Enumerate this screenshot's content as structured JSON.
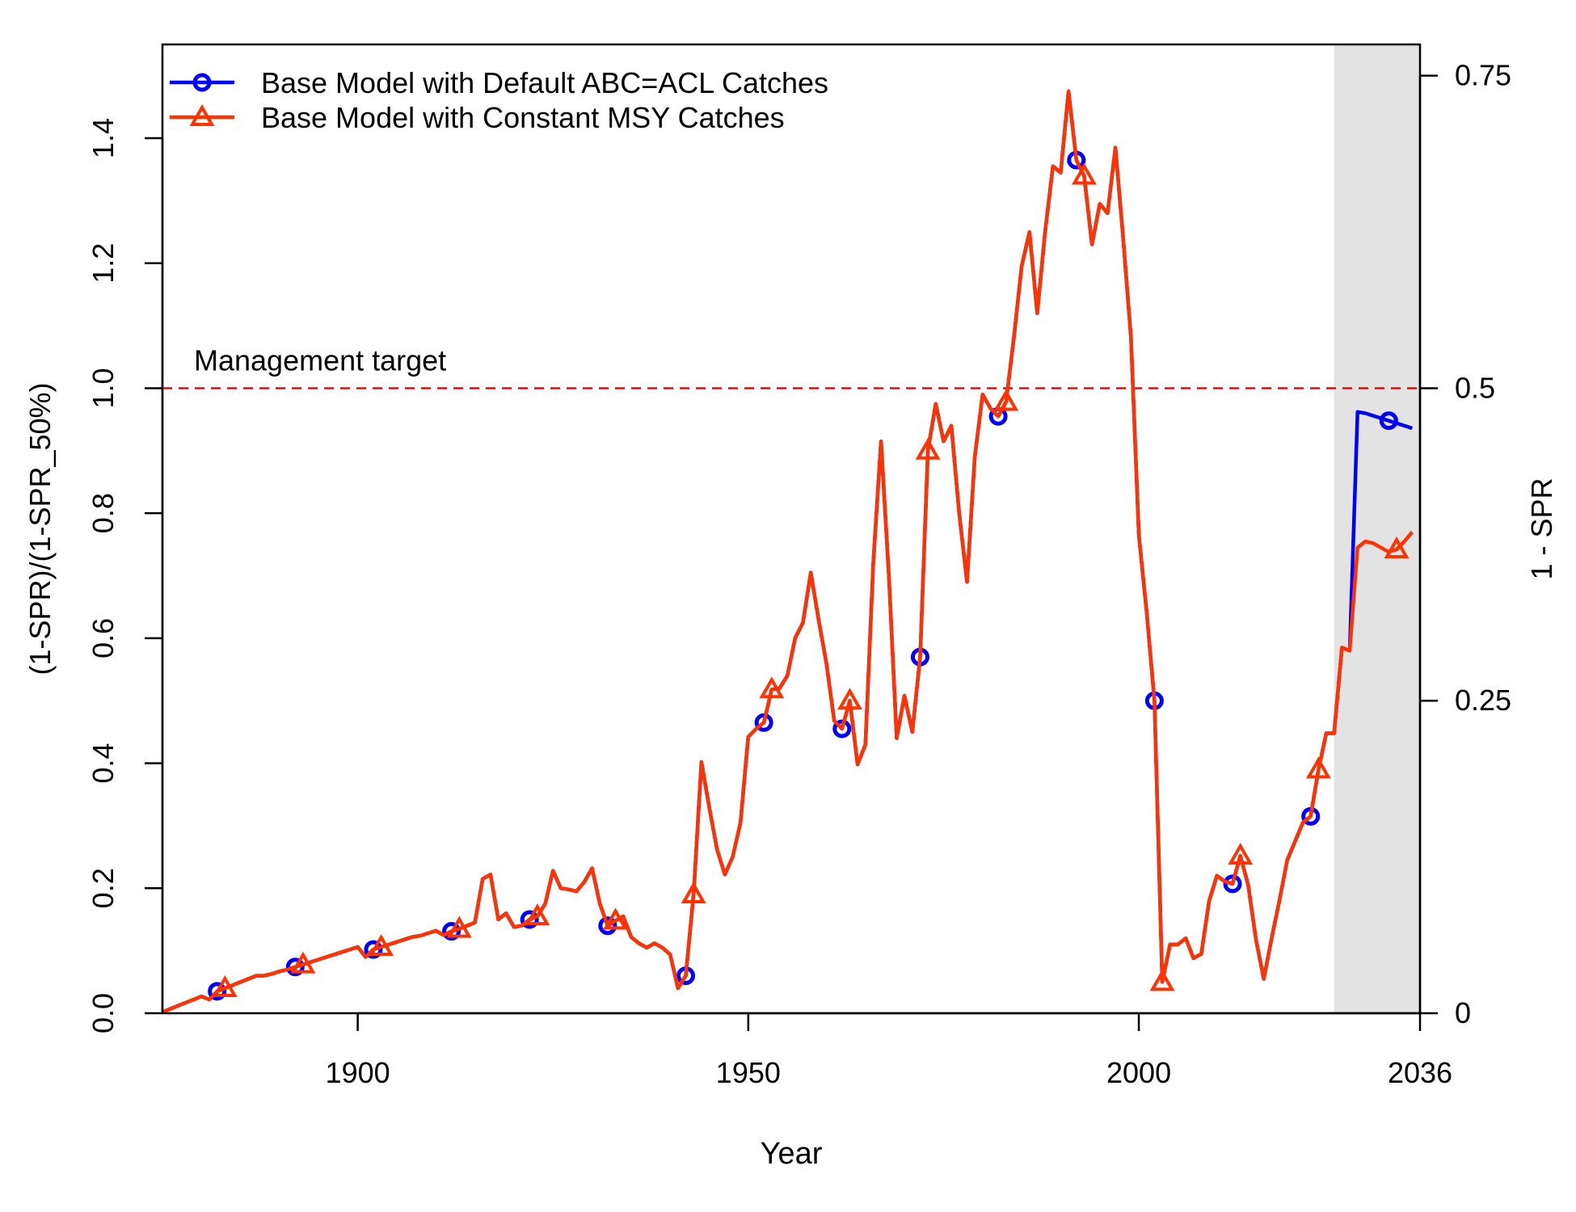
{
  "chart_data": {
    "type": "line",
    "title": "",
    "xlabel": "Year",
    "ylabel": "(1-SPR)/(1-SPR_50%)",
    "ylabel_right": "1 - SPR",
    "xlim": [
      1875,
      2036
    ],
    "ylim": [
      0,
      1.55
    ],
    "x_ticks": [
      1900,
      1950,
      2000,
      2036
    ],
    "x_tick_labels": [
      "1900",
      "1950",
      "2000",
      "2036"
    ],
    "y_ticks": [
      0,
      0.2,
      0.4,
      0.6,
      0.8,
      1.0,
      1.2,
      1.4
    ],
    "y_tick_labels": [
      "0.0",
      "0.2",
      "0.4",
      "0.6",
      "0.8",
      "1.0",
      "1.2",
      "1.4"
    ],
    "y2_ticks": [
      0,
      0.5,
      1.0,
      1.5
    ],
    "y2_tick_labels": [
      "0",
      "0.25",
      "0.5",
      "0.75"
    ],
    "grid": false,
    "legend_position": "top-left",
    "forecast_region": {
      "x_start": 2025,
      "x_end": 2036,
      "color": "#e3e3e3"
    },
    "reference_line": {
      "y": 1.0,
      "label": "Management target",
      "color": "#ff0000",
      "style": "dashed"
    },
    "series": [
      {
        "name": "Base Model with Default ABC=ACL Catches",
        "color": "#0000ff",
        "marker": "circle",
        "x": [
          1875,
          1876,
          1877,
          1878,
          1879,
          1880,
          1881,
          1882,
          1883,
          1884,
          1885,
          1886,
          1887,
          1888,
          1889,
          1890,
          1891,
          1892,
          1893,
          1894,
          1895,
          1896,
          1897,
          1898,
          1899,
          1900,
          1901,
          1902,
          1903,
          1904,
          1905,
          1906,
          1907,
          1908,
          1909,
          1910,
          1911,
          1912,
          1913,
          1914,
          1915,
          1916,
          1917,
          1918,
          1919,
          1920,
          1921,
          1922,
          1923,
          1924,
          1925,
          1926,
          1927,
          1928,
          1929,
          1930,
          1931,
          1932,
          1933,
          1934,
          1935,
          1936,
          1937,
          1938,
          1939,
          1940,
          1941,
          1942,
          1943,
          1944,
          1945,
          1946,
          1947,
          1948,
          1949,
          1950,
          1951,
          1952,
          1953,
          1954,
          1955,
          1956,
          1957,
          1958,
          1959,
          1960,
          1961,
          1962,
          1963,
          1964,
          1965,
          1966,
          1967,
          1968,
          1969,
          1970,
          1971,
          1972,
          1973,
          1974,
          1975,
          1976,
          1977,
          1978,
          1979,
          1980,
          1981,
          1982,
          1983,
          1984,
          1985,
          1986,
          1987,
          1988,
          1989,
          1990,
          1991,
          1992,
          1993,
          1994,
          1995,
          1996,
          1997,
          1998,
          1999,
          2000,
          2001,
          2002,
          2003,
          2004,
          2005,
          2006,
          2007,
          2008,
          2009,
          2010,
          2011,
          2012,
          2013,
          2014,
          2015,
          2016,
          2017,
          2018,
          2019,
          2020,
          2021,
          2022,
          2023,
          2024,
          2025,
          2026,
          2027,
          2028,
          2029,
          2030,
          2031,
          2032,
          2033,
          2034,
          2035
        ],
        "y": [
          0.002,
          0.007,
          0.012,
          0.017,
          0.022,
          0.027,
          0.022,
          0.035,
          0.04,
          0.045,
          0.05,
          0.055,
          0.06,
          0.06,
          0.063,
          0.067,
          0.07,
          0.074,
          0.078,
          0.082,
          0.086,
          0.09,
          0.094,
          0.098,
          0.102,
          0.106,
          0.09,
          0.102,
          0.106,
          0.11,
          0.114,
          0.118,
          0.122,
          0.124,
          0.128,
          0.132,
          0.125,
          0.131,
          0.135,
          0.14,
          0.145,
          0.215,
          0.222,
          0.15,
          0.16,
          0.138,
          0.14,
          0.15,
          0.155,
          0.175,
          0.228,
          0.2,
          0.198,
          0.195,
          0.21,
          0.232,
          0.175,
          0.14,
          0.148,
          0.155,
          0.122,
          0.112,
          0.105,
          0.112,
          0.105,
          0.094,
          0.04,
          0.06,
          0.19,
          0.402,
          0.33,
          0.262,
          0.222,
          0.25,
          0.305,
          0.442,
          0.455,
          0.465,
          0.518,
          0.52,
          0.54,
          0.6,
          0.625,
          0.705,
          0.63,
          0.56,
          0.468,
          0.455,
          0.5,
          0.398,
          0.43,
          0.72,
          0.915,
          0.7,
          0.44,
          0.508,
          0.45,
          0.57,
          0.9,
          0.975,
          0.915,
          0.94,
          0.8,
          0.69,
          0.89,
          0.99,
          0.968,
          0.955,
          0.978,
          1.08,
          1.195,
          1.25,
          1.12,
          1.25,
          1.355,
          1.345,
          1.475,
          1.365,
          1.34,
          1.23,
          1.295,
          1.28,
          1.385,
          1.24,
          1.08,
          0.765,
          0.643,
          0.5,
          0.05,
          0.11,
          0.11,
          0.12,
          0.088,
          0.095,
          0.18,
          0.22,
          0.211,
          0.207,
          0.252,
          0.205,
          0.118,
          0.055,
          0.12,
          0.18,
          0.245,
          0.275,
          0.305,
          0.315,
          0.39,
          0.448,
          0.448,
          0.585,
          0.58,
          0.962,
          0.96,
          0.956,
          0.952,
          0.948,
          0.944,
          0.94,
          0.936
        ],
        "y2": [
          0.001,
          0.0035,
          0.006,
          0.0085,
          0.011,
          0.0135,
          0.011,
          0.0175,
          0.02,
          0.0225,
          0.025,
          0.0275,
          0.03,
          0.03,
          0.0315,
          0.0335,
          0.035,
          0.037,
          0.039,
          0.041,
          0.043,
          0.045,
          0.047,
          0.049,
          0.051,
          0.053,
          0.045,
          0.051,
          0.053,
          0.055,
          0.057,
          0.059,
          0.061,
          0.062,
          0.064,
          0.066,
          0.0625,
          0.0655,
          0.0675,
          0.07,
          0.0725,
          0.1075,
          0.111,
          0.075,
          0.08,
          0.069,
          0.07,
          0.075,
          0.0775,
          0.0875,
          0.114,
          0.1,
          0.099,
          0.0975,
          0.105,
          0.116,
          0.0875,
          0.07,
          0.074,
          0.0775,
          0.061,
          0.056,
          0.0525,
          0.056,
          0.0525,
          0.047,
          0.02,
          0.03,
          0.095,
          0.201,
          0.165,
          0.131,
          0.111,
          0.125,
          0.1525,
          0.221,
          0.2275,
          0.2325,
          0.259,
          0.26,
          0.27,
          0.3,
          0.3125,
          0.3525,
          0.315,
          0.28,
          0.234,
          0.2275,
          0.25,
          0.199,
          0.215,
          0.36,
          0.4575,
          0.35,
          0.22,
          0.254,
          0.225,
          0.285,
          0.45,
          0.4875,
          0.4575,
          0.47,
          0.4,
          0.345,
          0.445,
          0.495,
          0.484,
          0.4775,
          0.489,
          0.54,
          0.5975,
          0.625,
          0.56,
          0.625,
          0.6775,
          0.6725,
          0.7375,
          0.6825,
          0.67,
          0.615,
          0.6475,
          0.64,
          0.6925,
          0.62,
          0.54,
          0.3825,
          0.3215,
          0.25,
          0.025,
          0.055,
          0.055,
          0.06,
          0.044,
          0.0475,
          0.09,
          0.11,
          0.1055,
          0.1035,
          0.126,
          0.1025,
          0.059,
          0.0275,
          0.06,
          0.09,
          0.1225,
          0.1375,
          0.1525,
          0.1575,
          0.195,
          0.224,
          0.224,
          0.2925,
          0.29,
          0.481,
          0.48,
          0.478,
          0.476,
          0.474,
          0.472,
          0.47,
          0.468
        ],
        "marker_x": [
          1882,
          1892,
          1902,
          1912,
          1922,
          1932,
          1942,
          1952,
          1962,
          1972,
          1982,
          1992,
          2002,
          2012,
          2022,
          2032
        ]
      },
      {
        "name": "Base Model with Constant MSY Catches",
        "color": "#ff3300",
        "marker": "triangle",
        "x": [
          1875,
          1876,
          1877,
          1878,
          1879,
          1880,
          1881,
          1882,
          1883,
          1884,
          1885,
          1886,
          1887,
          1888,
          1889,
          1890,
          1891,
          1892,
          1893,
          1894,
          1895,
          1896,
          1897,
          1898,
          1899,
          1900,
          1901,
          1902,
          1903,
          1904,
          1905,
          1906,
          1907,
          1908,
          1909,
          1910,
          1911,
          1912,
          1913,
          1914,
          1915,
          1916,
          1917,
          1918,
          1919,
          1920,
          1921,
          1922,
          1923,
          1924,
          1925,
          1926,
          1927,
          1928,
          1929,
          1930,
          1931,
          1932,
          1933,
          1934,
          1935,
          1936,
          1937,
          1938,
          1939,
          1940,
          1941,
          1942,
          1943,
          1944,
          1945,
          1946,
          1947,
          1948,
          1949,
          1950,
          1951,
          1952,
          1953,
          1954,
          1955,
          1956,
          1957,
          1958,
          1959,
          1960,
          1961,
          1962,
          1963,
          1964,
          1965,
          1966,
          1967,
          1968,
          1969,
          1970,
          1971,
          1972,
          1973,
          1974,
          1975,
          1976,
          1977,
          1978,
          1979,
          1980,
          1981,
          1982,
          1983,
          1984,
          1985,
          1986,
          1987,
          1988,
          1989,
          1990,
          1991,
          1992,
          1993,
          1994,
          1995,
          1996,
          1997,
          1998,
          1999,
          2000,
          2001,
          2002,
          2003,
          2004,
          2005,
          2006,
          2007,
          2008,
          2009,
          2010,
          2011,
          2012,
          2013,
          2014,
          2015,
          2016,
          2017,
          2018,
          2019,
          2020,
          2021,
          2022,
          2023,
          2024,
          2025,
          2026,
          2027,
          2028,
          2029,
          2030,
          2031,
          2032,
          2033,
          2034,
          2035
        ],
        "y": [
          0.002,
          0.007,
          0.012,
          0.017,
          0.022,
          0.027,
          0.022,
          0.035,
          0.04,
          0.045,
          0.05,
          0.055,
          0.06,
          0.06,
          0.063,
          0.067,
          0.07,
          0.074,
          0.078,
          0.082,
          0.086,
          0.09,
          0.094,
          0.098,
          0.102,
          0.106,
          0.09,
          0.102,
          0.106,
          0.11,
          0.114,
          0.118,
          0.122,
          0.124,
          0.128,
          0.132,
          0.125,
          0.131,
          0.135,
          0.14,
          0.145,
          0.215,
          0.222,
          0.15,
          0.16,
          0.138,
          0.14,
          0.15,
          0.155,
          0.175,
          0.228,
          0.2,
          0.198,
          0.195,
          0.21,
          0.232,
          0.175,
          0.14,
          0.148,
          0.155,
          0.122,
          0.112,
          0.105,
          0.112,
          0.105,
          0.094,
          0.04,
          0.06,
          0.19,
          0.402,
          0.33,
          0.262,
          0.222,
          0.25,
          0.305,
          0.442,
          0.455,
          0.465,
          0.518,
          0.52,
          0.54,
          0.6,
          0.625,
          0.705,
          0.63,
          0.56,
          0.468,
          0.455,
          0.5,
          0.398,
          0.43,
          0.72,
          0.915,
          0.7,
          0.44,
          0.508,
          0.45,
          0.57,
          0.9,
          0.975,
          0.915,
          0.94,
          0.8,
          0.69,
          0.89,
          0.99,
          0.968,
          0.955,
          0.978,
          1.08,
          1.195,
          1.25,
          1.12,
          1.25,
          1.355,
          1.345,
          1.475,
          1.365,
          1.34,
          1.23,
          1.295,
          1.28,
          1.385,
          1.24,
          1.08,
          0.765,
          0.643,
          0.5,
          0.05,
          0.11,
          0.11,
          0.12,
          0.088,
          0.095,
          0.18,
          0.22,
          0.211,
          0.207,
          0.252,
          0.205,
          0.118,
          0.055,
          0.12,
          0.18,
          0.245,
          0.275,
          0.305,
          0.315,
          0.39,
          0.448,
          0.448,
          0.585,
          0.58,
          0.745,
          0.755,
          0.752,
          0.745,
          0.738,
          0.742,
          0.755,
          0.77
        ],
        "y2": [
          0.001,
          0.0035,
          0.006,
          0.0085,
          0.011,
          0.0135,
          0.011,
          0.0175,
          0.02,
          0.0225,
          0.025,
          0.0275,
          0.03,
          0.03,
          0.0315,
          0.0335,
          0.035,
          0.037,
          0.039,
          0.041,
          0.043,
          0.045,
          0.047,
          0.049,
          0.051,
          0.053,
          0.045,
          0.051,
          0.053,
          0.055,
          0.057,
          0.059,
          0.061,
          0.062,
          0.064,
          0.066,
          0.0625,
          0.0655,
          0.0675,
          0.07,
          0.0725,
          0.1075,
          0.111,
          0.075,
          0.08,
          0.069,
          0.07,
          0.075,
          0.0775,
          0.0875,
          0.114,
          0.1,
          0.099,
          0.0975,
          0.105,
          0.116,
          0.0875,
          0.07,
          0.074,
          0.0775,
          0.061,
          0.056,
          0.0525,
          0.056,
          0.0525,
          0.047,
          0.02,
          0.03,
          0.095,
          0.201,
          0.165,
          0.131,
          0.111,
          0.125,
          0.1525,
          0.221,
          0.2275,
          0.2325,
          0.259,
          0.26,
          0.27,
          0.3,
          0.3125,
          0.3525,
          0.315,
          0.28,
          0.234,
          0.2275,
          0.25,
          0.199,
          0.215,
          0.36,
          0.4575,
          0.35,
          0.22,
          0.254,
          0.225,
          0.285,
          0.45,
          0.4875,
          0.4575,
          0.47,
          0.4,
          0.345,
          0.445,
          0.495,
          0.484,
          0.4775,
          0.489,
          0.54,
          0.5975,
          0.625,
          0.56,
          0.625,
          0.6775,
          0.6725,
          0.7375,
          0.6825,
          0.67,
          0.615,
          0.6475,
          0.64,
          0.6925,
          0.62,
          0.54,
          0.3825,
          0.3215,
          0.25,
          0.025,
          0.055,
          0.055,
          0.06,
          0.044,
          0.0475,
          0.09,
          0.11,
          0.1055,
          0.1035,
          0.126,
          0.1025,
          0.059,
          0.0275,
          0.06,
          0.09,
          0.1225,
          0.1375,
          0.1525,
          0.1575,
          0.195,
          0.224,
          0.224,
          0.2925,
          0.29,
          0.3725,
          0.3775,
          0.376,
          0.3725,
          0.369,
          0.371,
          0.3775,
          0.385
        ],
        "marker_x": [
          1883,
          1893,
          1903,
          1913,
          1923,
          1933,
          1943,
          1953,
          1963,
          1973,
          1983,
          1993,
          2003,
          2013,
          2023,
          2033
        ]
      }
    ]
  }
}
